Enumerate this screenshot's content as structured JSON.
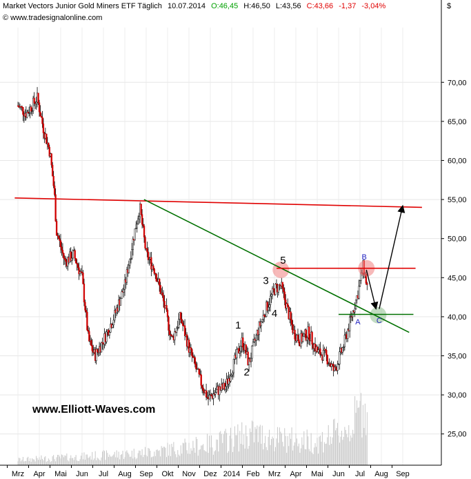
{
  "header": {
    "instrument": "Market Vectors Junior Gold Miners ETF Täglich",
    "date": "10.07.2014",
    "open": "O:46,45",
    "high": "H:46,50",
    "low": "L:43,56",
    "close": "C:43,66",
    "change": "-1,37",
    "change_pct": "-3,04%",
    "source": "© www.tradesignalonline.com",
    "currency": "$"
  },
  "watermark": "www.Elliott-Waves.com",
  "chart_data": {
    "type": "candlestick",
    "title": "Market Vectors Junior Gold Miners ETF Täglich",
    "ylim": [
      21,
      77
    ],
    "y_ticks": [
      "25,00",
      "30,00",
      "35,00",
      "40,00",
      "45,00",
      "50,00",
      "55,00",
      "60,00",
      "65,00",
      "70,00"
    ],
    "y_tick_values": [
      25,
      30,
      35,
      40,
      45,
      50,
      55,
      60,
      65,
      70
    ],
    "x_labels": [
      "Mrz",
      "Apr",
      "Mai",
      "Jun",
      "Jul",
      "Aug",
      "Sep",
      "Okt",
      "Nov",
      "Dez",
      "2014",
      "Feb",
      "Mrz",
      "Apr",
      "Mai",
      "Jun",
      "Jul",
      "Aug",
      "Sep"
    ],
    "x_label_months": [
      0,
      1,
      2,
      3,
      4,
      5,
      6,
      7,
      8,
      9,
      10,
      11,
      12,
      13,
      14,
      15,
      16,
      17,
      18
    ],
    "price_path": [
      [
        0.0,
        67
      ],
      [
        0.4,
        66
      ],
      [
        0.9,
        68
      ],
      [
        1.2,
        64
      ],
      [
        1.5,
        61
      ],
      [
        1.7,
        56
      ],
      [
        1.8,
        51
      ],
      [
        2.2,
        47
      ],
      [
        2.6,
        48
      ],
      [
        3.0,
        45
      ],
      [
        3.3,
        37
      ],
      [
        3.6,
        35
      ],
      [
        4.0,
        37
      ],
      [
        4.5,
        40
      ],
      [
        5.0,
        44
      ],
      [
        5.4,
        50
      ],
      [
        5.7,
        54
      ],
      [
        6.0,
        48
      ],
      [
        6.4,
        46
      ],
      [
        6.8,
        42
      ],
      [
        7.2,
        37
      ],
      [
        7.6,
        40
      ],
      [
        8.0,
        36
      ],
      [
        8.5,
        32
      ],
      [
        8.9,
        29.5
      ],
      [
        9.3,
        30.5
      ],
      [
        9.7,
        31
      ],
      [
        10.1,
        34
      ],
      [
        10.5,
        37
      ],
      [
        10.8,
        34
      ],
      [
        11.2,
        38
      ],
      [
        11.6,
        41
      ],
      [
        12.0,
        43.5
      ],
      [
        12.3,
        44
      ],
      [
        12.6,
        41
      ],
      [
        12.9,
        38
      ],
      [
        13.2,
        37
      ],
      [
        13.6,
        38
      ],
      [
        14.0,
        35.5
      ],
      [
        14.4,
        35
      ],
      [
        14.8,
        33
      ],
      [
        15.2,
        36
      ],
      [
        15.6,
        40
      ],
      [
        15.9,
        43
      ],
      [
        16.15,
        46.5
      ],
      [
        16.35,
        43.66
      ]
    ],
    "volume_path": [
      [
        0,
        0.5
      ],
      [
        3,
        0.8
      ],
      [
        6,
        1.2
      ],
      [
        9,
        2.0
      ],
      [
        11,
        3.0
      ],
      [
        12,
        2.5
      ],
      [
        14,
        2.2
      ],
      [
        15.5,
        3.5
      ],
      [
        16.3,
        6.0
      ]
    ],
    "lines": [
      {
        "color": "#e00000",
        "from": [
          -0.15,
          55.2
        ],
        "to": [
          18.9,
          54.0
        ]
      },
      {
        "color": "#007000",
        "from": [
          5.9,
          55.0
        ],
        "to": [
          18.3,
          38.0
        ]
      },
      {
        "color": "#e00000",
        "from": [
          12.1,
          46.2
        ],
        "to": [
          18.6,
          46.2
        ]
      },
      {
        "color": "#007000",
        "from": [
          15.0,
          40.3
        ],
        "to": [
          18.5,
          40.3
        ]
      }
    ],
    "arrows": [
      {
        "from": [
          16.3,
          46.0
        ],
        "to": [
          16.75,
          41.0
        ]
      },
      {
        "from": [
          16.9,
          41.0
        ],
        "to": [
          18.0,
          54.2
        ]
      }
    ],
    "circles": [
      {
        "color": "#f08080",
        "at": [
          12.3,
          46.0
        ]
      },
      {
        "color": "#f08080",
        "at": [
          16.3,
          46.2
        ]
      },
      {
        "color": "#90c090",
        "at": [
          16.85,
          40.2
        ]
      }
    ],
    "wave_labels": [
      {
        "text": "1",
        "at": [
          10.3,
          38.5
        ],
        "kind": "wave"
      },
      {
        "text": "2",
        "at": [
          10.7,
          32.5
        ],
        "kind": "wave"
      },
      {
        "text": "3",
        "at": [
          11.6,
          44.2
        ],
        "kind": "wave"
      },
      {
        "text": "4",
        "at": [
          12.0,
          40.0
        ],
        "kind": "wave"
      },
      {
        "text": "5",
        "at": [
          12.4,
          46.8
        ],
        "kind": "wave"
      },
      {
        "text": "A",
        "at": [
          15.9,
          39.0
        ],
        "kind": "abc"
      },
      {
        "text": "B",
        "at": [
          16.2,
          47.3
        ],
        "kind": "abc"
      },
      {
        "text": "C",
        "at": [
          16.9,
          39.2
        ],
        "kind": "abc"
      }
    ]
  }
}
